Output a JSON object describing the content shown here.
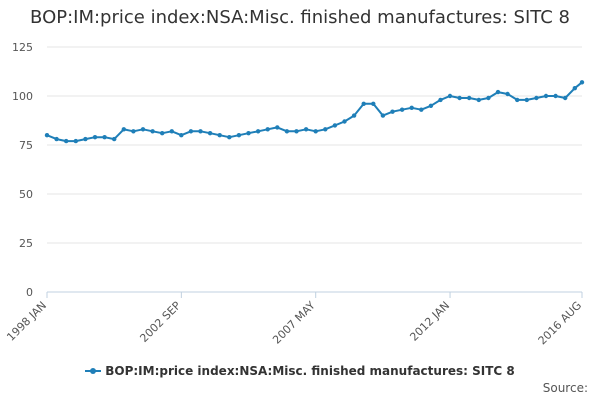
{
  "chart_data": {
    "type": "line",
    "title": "BOP:IM:price index:NSA:Misc. finished manufactures: SITC 8",
    "xlabel": "",
    "ylabel": "",
    "ylim": [
      0,
      125
    ],
    "yticks": [
      0,
      25,
      50,
      75,
      100,
      125
    ],
    "x_range": [
      "1998-01",
      "2016-08"
    ],
    "x_ticks": [
      {
        "label": "1998 JAN",
        "date": "1998-01"
      },
      {
        "label": "2002 SEP",
        "date": "2002-09"
      },
      {
        "label": "2007 MAY",
        "date": "2007-05"
      },
      {
        "label": "2012 JAN",
        "date": "2012-01"
      },
      {
        "label": "2016 AUG",
        "date": "2016-08"
      }
    ],
    "grid": "horizontal",
    "legend_position": "bottom",
    "colors": {
      "series": "#1f7fb8",
      "grid": "#e6e6e6",
      "axis": "#c0d0e0"
    },
    "series": [
      {
        "name": "BOP:IM:price index:NSA:Misc. finished manufactures: SITC 8",
        "points": [
          [
            "1998-01",
            80
          ],
          [
            "1998-05",
            78
          ],
          [
            "1998-09",
            77
          ],
          [
            "1999-01",
            77
          ],
          [
            "1999-05",
            78
          ],
          [
            "1999-09",
            79
          ],
          [
            "2000-01",
            79
          ],
          [
            "2000-05",
            78
          ],
          [
            "2000-09",
            83
          ],
          [
            "2001-01",
            82
          ],
          [
            "2001-05",
            83
          ],
          [
            "2001-09",
            82
          ],
          [
            "2002-01",
            81
          ],
          [
            "2002-05",
            82
          ],
          [
            "2002-09",
            80
          ],
          [
            "2003-01",
            82
          ],
          [
            "2003-05",
            82
          ],
          [
            "2003-09",
            81
          ],
          [
            "2004-01",
            80
          ],
          [
            "2004-05",
            79
          ],
          [
            "2004-09",
            80
          ],
          [
            "2005-01",
            81
          ],
          [
            "2005-05",
            82
          ],
          [
            "2005-09",
            83
          ],
          [
            "2006-01",
            84
          ],
          [
            "2006-05",
            82
          ],
          [
            "2006-09",
            82
          ],
          [
            "2007-01",
            83
          ],
          [
            "2007-05",
            82
          ],
          [
            "2007-09",
            83
          ],
          [
            "2008-01",
            85
          ],
          [
            "2008-05",
            87
          ],
          [
            "2008-09",
            90
          ],
          [
            "2009-01",
            96
          ],
          [
            "2009-05",
            96
          ],
          [
            "2009-09",
            90
          ],
          [
            "2010-01",
            92
          ],
          [
            "2010-05",
            93
          ],
          [
            "2010-09",
            94
          ],
          [
            "2011-01",
            93
          ],
          [
            "2011-05",
            95
          ],
          [
            "2011-09",
            98
          ],
          [
            "2012-01",
            100
          ],
          [
            "2012-05",
            99
          ],
          [
            "2012-09",
            99
          ],
          [
            "2013-01",
            98
          ],
          [
            "2013-05",
            99
          ],
          [
            "2013-09",
            102
          ],
          [
            "2014-01",
            101
          ],
          [
            "2014-05",
            98
          ],
          [
            "2014-09",
            98
          ],
          [
            "2015-01",
            99
          ],
          [
            "2015-05",
            100
          ],
          [
            "2015-09",
            100
          ],
          [
            "2016-01",
            99
          ],
          [
            "2016-05",
            104
          ],
          [
            "2016-08",
            107
          ]
        ]
      }
    ],
    "source_label": "Source:"
  }
}
